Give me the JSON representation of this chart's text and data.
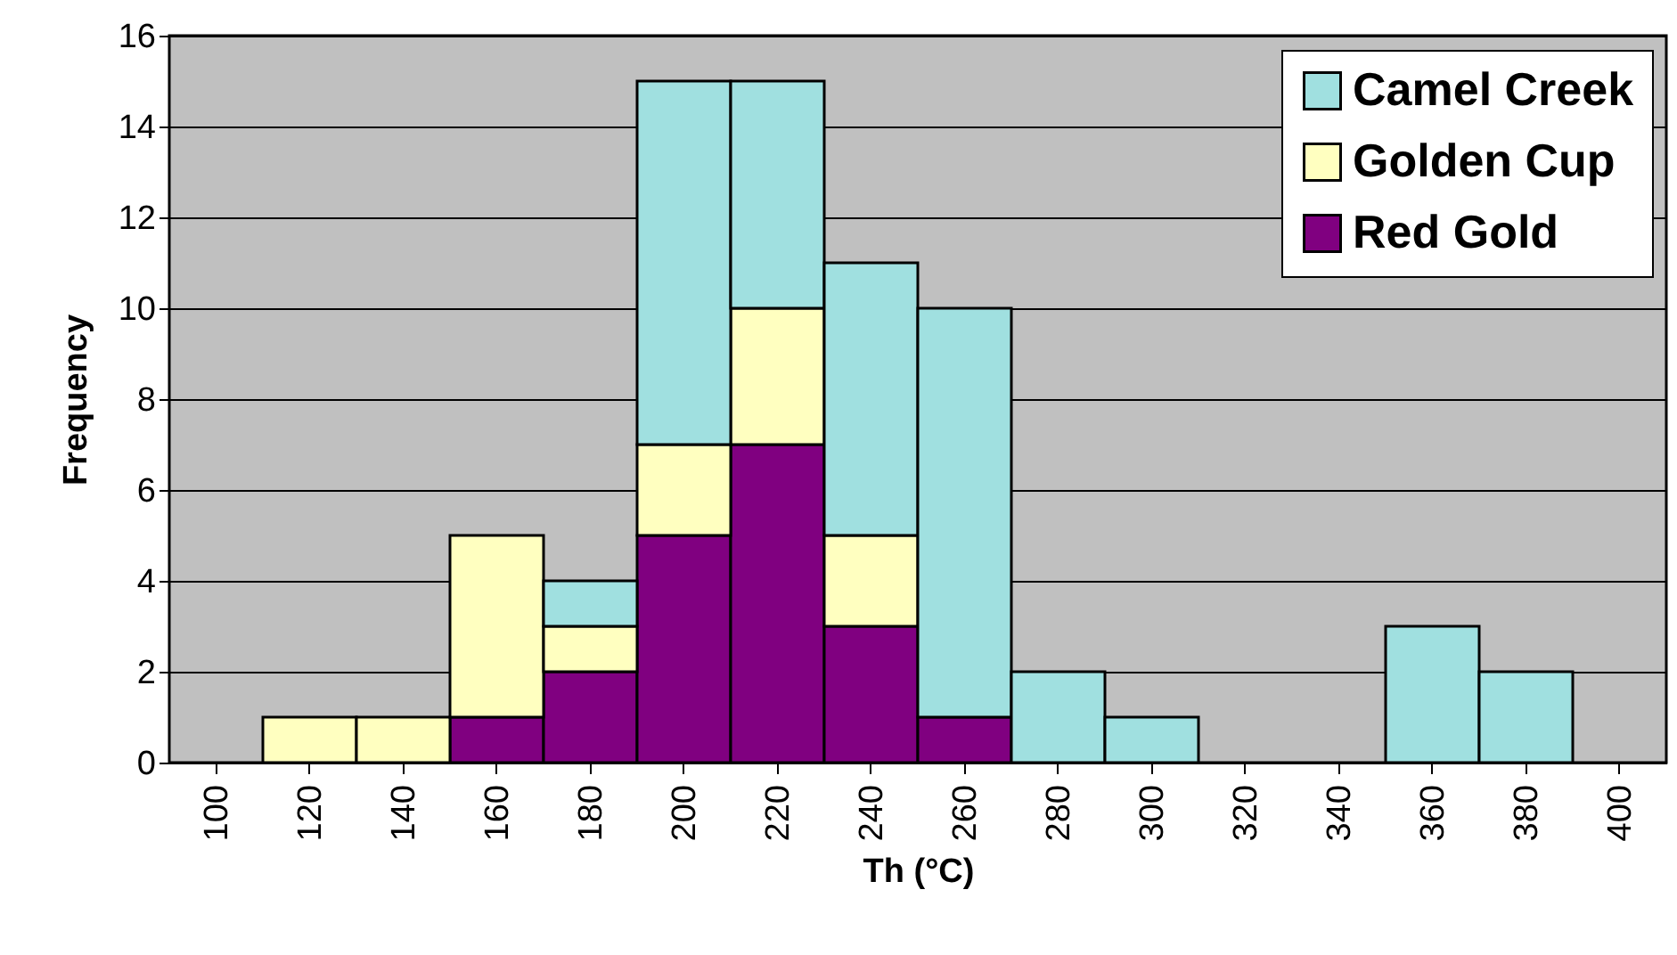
{
  "chart_data": {
    "type": "bar",
    "stacked": true,
    "xlabel": "Th (°C)",
    "ylabel": "Frequency",
    "categories": [
      "100",
      "120",
      "140",
      "160",
      "180",
      "200",
      "220",
      "240",
      "260",
      "280",
      "300",
      "320",
      "340",
      "360",
      "380",
      "400"
    ],
    "series": [
      {
        "name": "Red Gold",
        "color": "#800080",
        "values": [
          0,
          0,
          0,
          1,
          2,
          5,
          7,
          3,
          1,
          0,
          0,
          0,
          0,
          0,
          0,
          0
        ]
      },
      {
        "name": "Golden Cup",
        "color": "#ffffc0",
        "values": [
          0,
          1,
          1,
          4,
          1,
          2,
          3,
          2,
          0,
          0,
          0,
          0,
          0,
          0,
          0,
          0
        ]
      },
      {
        "name": "Camel Creek",
        "color": "#a0e0e0",
        "values": [
          0,
          0,
          0,
          0,
          1,
          8,
          5,
          6,
          9,
          2,
          1,
          0,
          0,
          3,
          2,
          0
        ]
      }
    ],
    "ylim": [
      0,
      16
    ],
    "yticks": [
      0,
      2,
      4,
      6,
      8,
      10,
      12,
      14,
      16
    ],
    "grid": "y",
    "legend": "top right"
  }
}
